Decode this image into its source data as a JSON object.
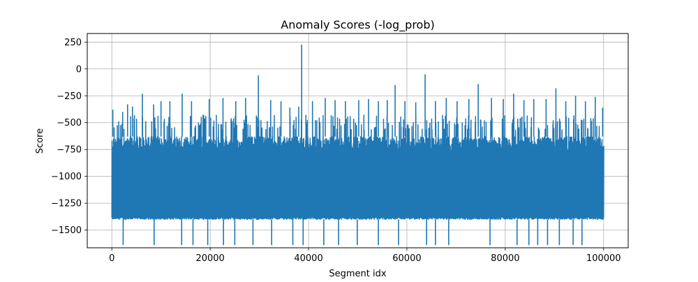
{
  "chart_data": {
    "type": "line",
    "title": "Anomaly Scores (-log_prob)",
    "xlabel": "Segment idx",
    "ylabel": "Score",
    "xlim": [
      -5000,
      105000
    ],
    "ylim": [
      -1665,
      330
    ],
    "xticks": [
      0,
      20000,
      40000,
      60000,
      80000,
      100000
    ],
    "xtick_labels": [
      "0",
      "20000",
      "40000",
      "60000",
      "80000",
      "100000"
    ],
    "yticks": [
      250,
      0,
      -250,
      -500,
      -750,
      -1000,
      -1250,
      -1500
    ],
    "ytick_labels": [
      "250",
      "0",
      "−250",
      "−500",
      "−750",
      "−1000",
      "−1250",
      "−1500"
    ],
    "grid": true,
    "line_color": "#1f77b4",
    "series": [
      {
        "x_range": [
          0,
          100000
        ],
        "band": {
          "low": -1400,
          "high": -630
        },
        "spikes_up": [
          [
            200,
            -380
          ],
          [
            2200,
            -400
          ],
          [
            3200,
            -330
          ],
          [
            4200,
            -350
          ],
          [
            6200,
            -230
          ],
          [
            8500,
            -330
          ],
          [
            10000,
            -300
          ],
          [
            11800,
            -300
          ],
          [
            14300,
            -230
          ],
          [
            16200,
            -300
          ],
          [
            19800,
            -280
          ],
          [
            22600,
            -270
          ],
          [
            25200,
            -300
          ],
          [
            27200,
            -270
          ],
          [
            29800,
            -60
          ],
          [
            32300,
            -290
          ],
          [
            34400,
            -300
          ],
          [
            36200,
            -360
          ],
          [
            38000,
            -350
          ],
          [
            38600,
            225
          ],
          [
            40800,
            -300
          ],
          [
            43400,
            -270
          ],
          [
            45400,
            -290
          ],
          [
            47500,
            -300
          ],
          [
            50200,
            -290
          ],
          [
            52200,
            -280
          ],
          [
            54200,
            -300
          ],
          [
            56000,
            -290
          ],
          [
            57600,
            -150
          ],
          [
            59600,
            -300
          ],
          [
            61800,
            -310
          ],
          [
            63700,
            -50
          ],
          [
            65800,
            -300
          ],
          [
            68000,
            -270
          ],
          [
            70200,
            -300
          ],
          [
            72600,
            -280
          ],
          [
            74500,
            -140
          ],
          [
            77200,
            -270
          ],
          [
            79600,
            -280
          ],
          [
            81700,
            -230
          ],
          [
            83800,
            -290
          ],
          [
            85800,
            -280
          ],
          [
            88300,
            -280
          ],
          [
            90300,
            -180
          ],
          [
            92300,
            -300
          ],
          [
            94300,
            -250
          ],
          [
            96300,
            -300
          ],
          [
            98300,
            -260
          ],
          [
            99800,
            -360
          ]
        ],
        "spikes_down": [
          [
            2300,
            -1640
          ],
          [
            8600,
            -1640
          ],
          [
            14200,
            -1640
          ],
          [
            16500,
            -1640
          ],
          [
            19500,
            -1640
          ],
          [
            22700,
            -1640
          ],
          [
            25000,
            -1640
          ],
          [
            28700,
            -1640
          ],
          [
            32500,
            -1640
          ],
          [
            36800,
            -1640
          ],
          [
            38900,
            -1640
          ],
          [
            43100,
            -1640
          ],
          [
            46100,
            -1640
          ],
          [
            49900,
            -1640
          ],
          [
            54200,
            -1640
          ],
          [
            58300,
            -1640
          ],
          [
            64000,
            -1640
          ],
          [
            65800,
            -1640
          ],
          [
            68500,
            -1640
          ],
          [
            76900,
            -1640
          ],
          [
            82400,
            -1640
          ],
          [
            84800,
            -1640
          ],
          [
            86600,
            -1640
          ],
          [
            88600,
            -1640
          ],
          [
            91000,
            -1640
          ],
          [
            93800,
            -1640
          ],
          [
            95600,
            -1640
          ]
        ]
      }
    ]
  }
}
